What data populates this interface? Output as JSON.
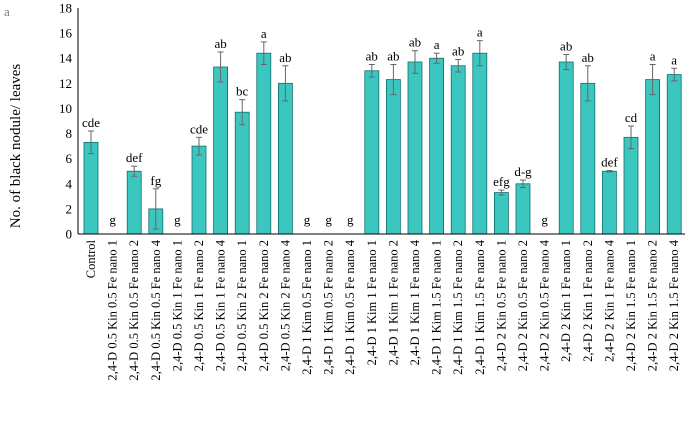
{
  "panel_label": "a",
  "chart_data": {
    "type": "bar",
    "title": "",
    "xlabel": "",
    "ylabel": "No. of black nodule/ leaves",
    "ylim": [
      0,
      18
    ],
    "yticks": [
      0,
      2,
      4,
      6,
      8,
      10,
      12,
      14,
      16,
      18
    ],
    "grid": false,
    "bar_color": "#3cc6c0",
    "categories": [
      "Control",
      "2,4-D 0.5 Kin 0.5 Fe nano 1",
      "2,4-D 0.5 Kin 0.5 Fe nano 2",
      "2,4-D 0.5 Kin 0.5 Fe nano 4",
      "2,4-D 0.5 Kin 1 Fe nano 1",
      "2,4-D 0.5 Kin 1 Fe nano 2",
      "2,4-D 0.5 Kin 1 Fe nano 4",
      "2,4-D 0.5 Kin 2 Fe nano 1",
      "2,4-D 0.5 Kin 2 Fe nano 2",
      "2,4-D 0.5 Kin 2 Fe nano 4",
      "2,4-D 1 Kim 0.5 Fe nano 1",
      "2,4-D 1 Kim 0.5 Fe nano 2",
      "2,4-D 1 Kim 0.5 Fe nano 4",
      "2,4-D 1 Kim 1 Fe nano 1",
      "2,4-D 1 Kim 1 Fe nano 2",
      "2,4-D 1 Kim 1 Fe nano 4",
      "2,4-D 1 Kim 1.5 Fe nano 1",
      "2,4-D 1 Kim 1.5 Fe nano 2",
      "2,4-D 1 Kim 1.5 Fe nano 4",
      "2,4-D 2 Kin 0.5 Fe nano 1",
      "2,4-D 2 Kin 0.5 Fe nano 2",
      "2,4-D 2 Kin 0.5 Fe nano 4",
      "2,4-D 2 Kin 1 Fe nano 1",
      "2,4-D 2 Kin 1 Fe nano 2",
      "2,4-D 2 Kin 1 Fe nano 4",
      "2,4-D 2 Kin 1.5 Fe nano 1",
      "2,4-D 2 Kin 1.5 Fe nano 2",
      "2,4-D 2 Kin 1.5 Fe nano 4"
    ],
    "values": [
      7.3,
      0,
      5.0,
      2.0,
      0,
      7.0,
      13.3,
      9.7,
      14.4,
      12.0,
      0,
      0,
      0,
      13.0,
      12.3,
      13.7,
      14.0,
      13.4,
      14.4,
      3.3,
      4.0,
      0,
      13.7,
      12.0,
      5.0,
      7.7,
      12.3,
      12.7
    ],
    "errors": [
      0.9,
      0,
      0.4,
      1.6,
      0,
      0.7,
      1.2,
      1.0,
      0.9,
      1.4,
      0,
      0,
      0,
      0.5,
      1.2,
      0.9,
      0.4,
      0.5,
      1.0,
      0.2,
      0.3,
      0,
      0.6,
      1.4,
      0.05,
      0.9,
      1.2,
      0.5
    ],
    "significance": [
      "cde",
      "g",
      "def",
      "fg",
      "g",
      "cde",
      "ab",
      "bc",
      "a",
      "ab",
      "g",
      "g",
      "g",
      "ab",
      "ab",
      "ab",
      "a",
      "ab",
      "a",
      "efg",
      "d-g",
      "g",
      "ab",
      "ab",
      "def",
      "cd",
      "a",
      "a"
    ]
  }
}
